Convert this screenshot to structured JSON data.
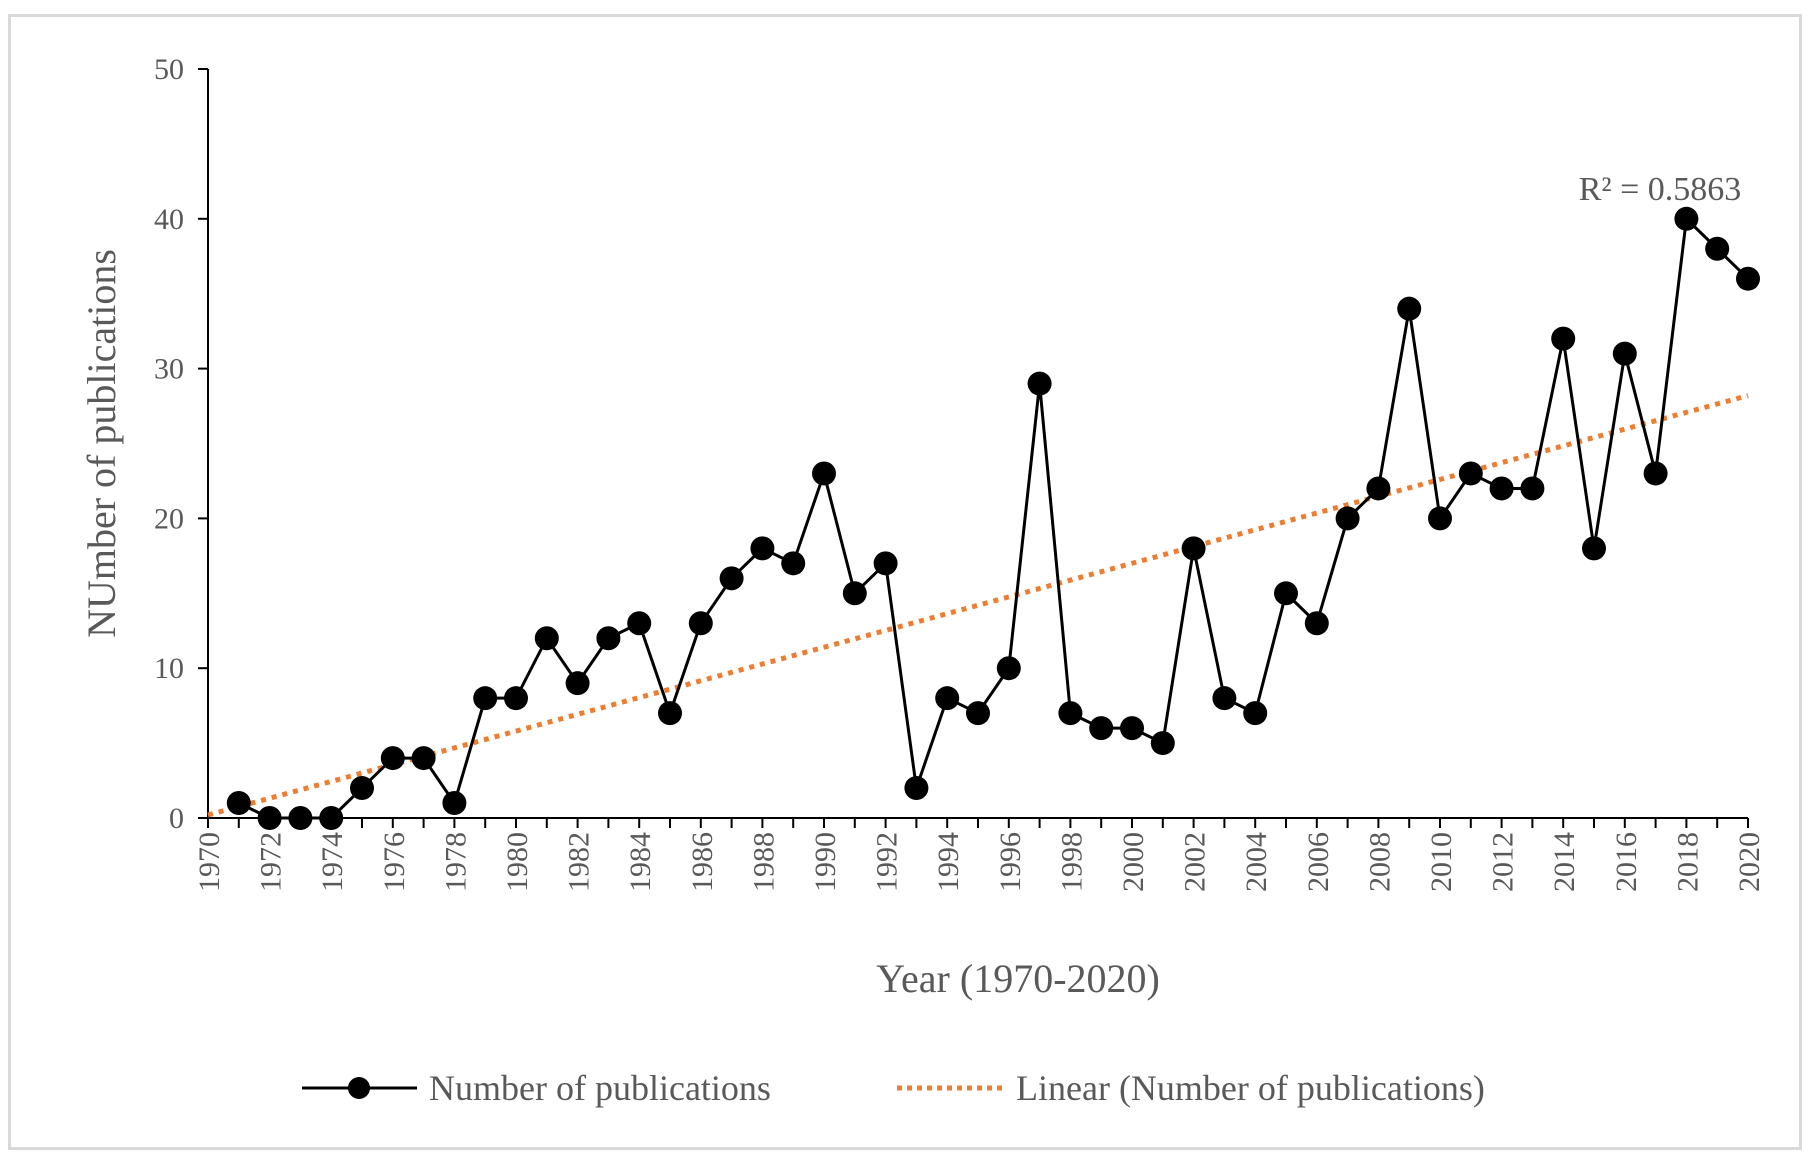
{
  "chart_data": {
    "type": "line",
    "title": "",
    "xlabel": "Year (1970-2020)",
    "ylabel": "NUmber of publications",
    "xlim": [
      1970,
      2020
    ],
    "ylim": [
      0,
      50
    ],
    "yticks": [
      "0",
      "10",
      "20",
      "30",
      "40",
      "50"
    ],
    "xticks": [
      "1970",
      "1972",
      "1974",
      "1976",
      "1978",
      "1980",
      "1982",
      "1984",
      "1986",
      "1988",
      "1990",
      "1992",
      "1994",
      "1996",
      "1998",
      "2000",
      "2002",
      "2004",
      "2006",
      "2008",
      "2010",
      "2012",
      "2014",
      "2016",
      "2018",
      "2020"
    ],
    "series": [
      {
        "name": "Number of publications",
        "color": "#000000",
        "marker": "circle",
        "x": [
          1971,
          1972,
          1973,
          1974,
          1975,
          1976,
          1977,
          1978,
          1979,
          1980,
          1981,
          1982,
          1983,
          1984,
          1985,
          1986,
          1987,
          1988,
          1989,
          1990,
          1991,
          1992,
          1993,
          1994,
          1995,
          1996,
          1997,
          1998,
          1999,
          2000,
          2001,
          2002,
          2003,
          2004,
          2005,
          2006,
          2007,
          2008,
          2009,
          2010,
          2011,
          2012,
          2013,
          2014,
          2015,
          2016,
          2017,
          2018,
          2019,
          2020
        ],
        "values": [
          1,
          0,
          0,
          0,
          2,
          4,
          4,
          1,
          8,
          8,
          12,
          9,
          12,
          13,
          7,
          13,
          16,
          18,
          17,
          23,
          15,
          17,
          2,
          8,
          7,
          10,
          29,
          7,
          6,
          6,
          5,
          18,
          8,
          7,
          15,
          13,
          20,
          22,
          34,
          20,
          23,
          22,
          22,
          32,
          18,
          31,
          23,
          40,
          38,
          36
        ]
      }
    ],
    "trendline": {
      "name": "Linear (Number of publications)",
      "type": "linear",
      "color": "#ed7d31",
      "style": "dotted",
      "x_start": 1970,
      "y_start": 0.2,
      "x_end": 2020,
      "y_end": 28.2,
      "r_squared_label": "R² = 0.5863"
    },
    "legend": {
      "position": "bottom",
      "items": [
        "Number of publications",
        "Linear (Number of publications)"
      ]
    }
  }
}
